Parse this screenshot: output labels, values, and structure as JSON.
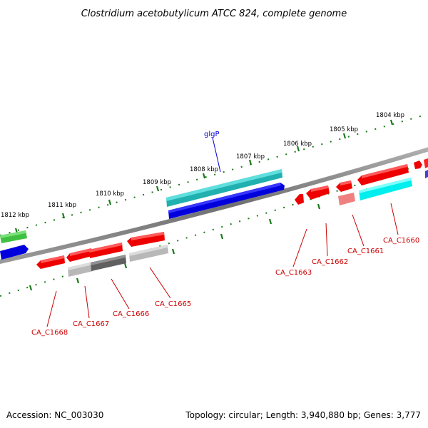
{
  "header": {
    "title": "Clostridium acetobutylicum ATCC 824, complete genome"
  },
  "footer": {
    "accession": "Accession: NC_003030",
    "summary": "Topology: circular; Length: 3,940,880 bp; Genes: 3,777"
  },
  "scale_labels": [
    "1804 kbp",
    "1805 kbp",
    "1806 kbp",
    "1807 kbp",
    "1808 kbp",
    "1809 kbp",
    "1810 kbp",
    "1811 kbp",
    "1812 kbp"
  ],
  "gene_labels": {
    "forward": [
      "glgP"
    ],
    "reverse": [
      "CA_C1660",
      "CA_C1661",
      "CA_C1662",
      "CA_C1663",
      "CA_C1665",
      "CA_C1666",
      "CA_C1667",
      "CA_C1668"
    ]
  },
  "colors": {
    "backbone": "#808080",
    "tick": "#1a7a1a",
    "forward_label": "#0000cc",
    "reverse_label": "#cc0000"
  }
}
